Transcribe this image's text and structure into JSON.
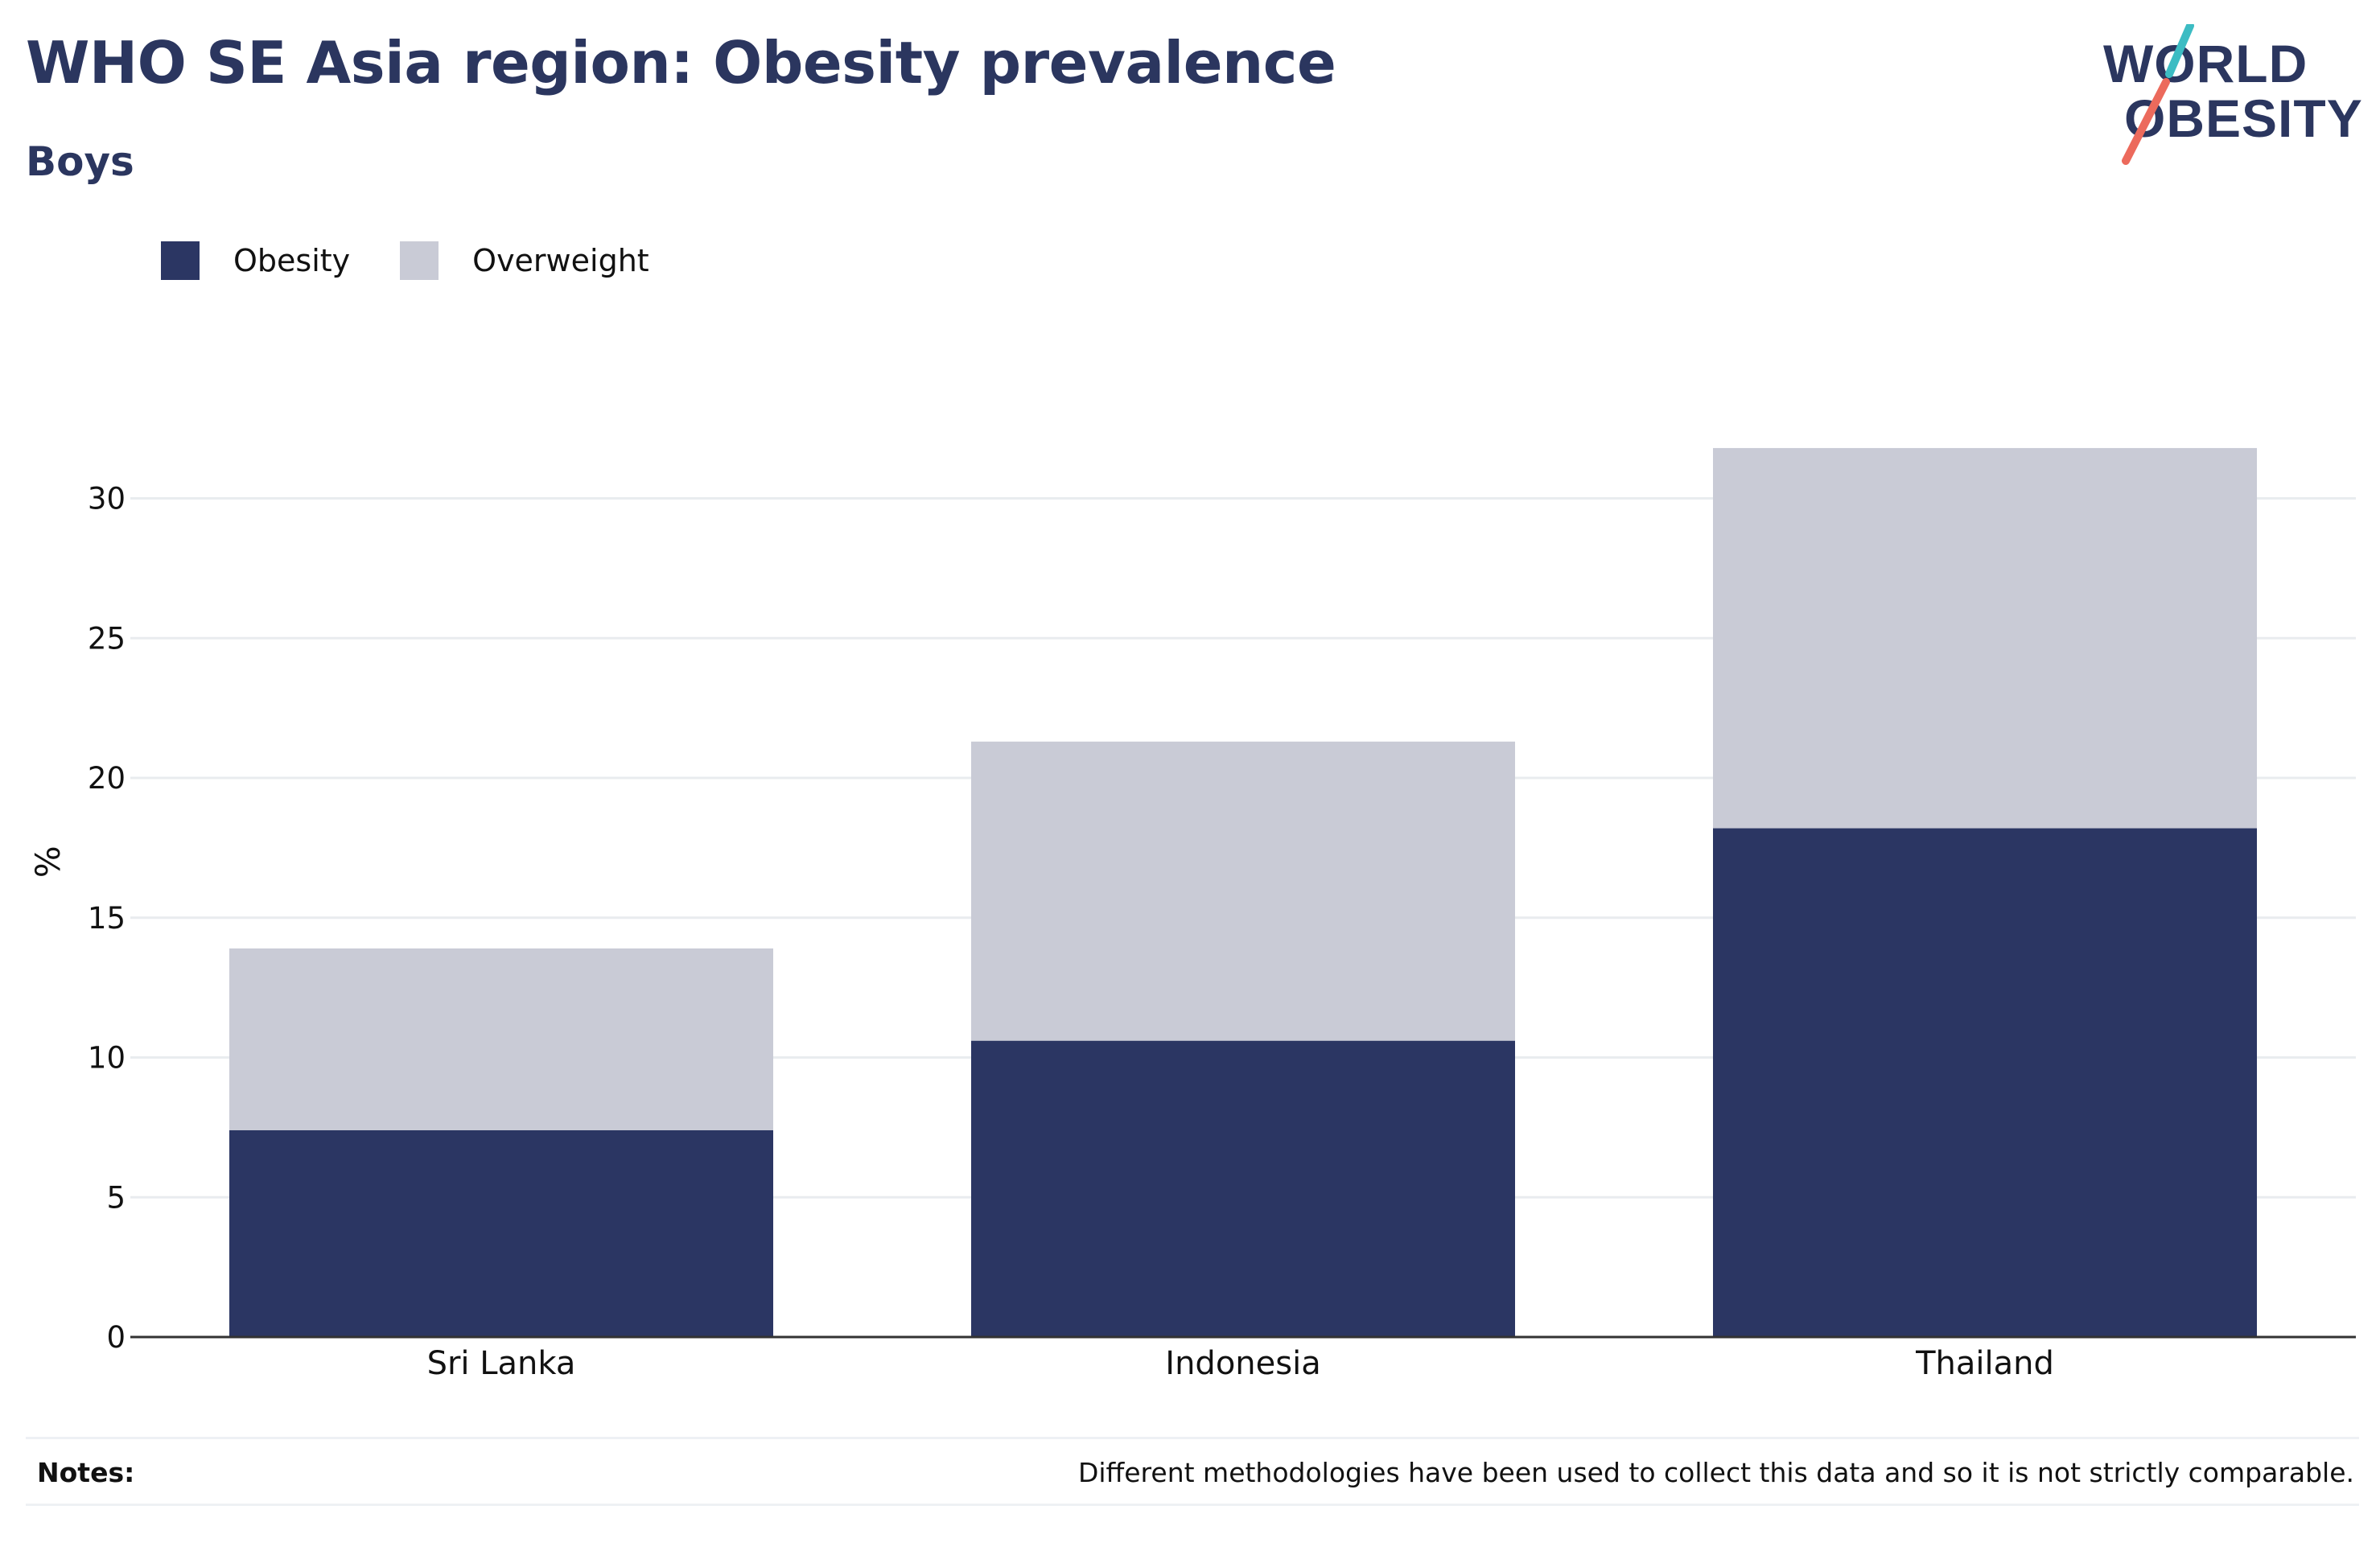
{
  "header": {
    "title": "WHO SE Asia region: Obesity prevalence",
    "subtitle": "Boys"
  },
  "logo": {
    "line1": "WORLD",
    "line2": "OBESITY",
    "colors": {
      "text": "#2b365f",
      "slash_top": "#3cbcc3",
      "slash_bottom": "#ec6a5c"
    }
  },
  "legend": {
    "items": [
      {
        "label": "Obesity",
        "color": "#2b3663"
      },
      {
        "label": "Overweight",
        "color": "#c9cbd6"
      }
    ]
  },
  "chart_data": {
    "type": "bar",
    "stacked": true,
    "categories": [
      "Sri Lanka",
      "Indonesia",
      "Thailand"
    ],
    "series": [
      {
        "name": "Obesity",
        "color": "#2b3663",
        "values": [
          7.4,
          10.6,
          18.2
        ]
      },
      {
        "name": "Overweight",
        "color": "#c9cbd6",
        "values": [
          6.5,
          10.7,
          13.6
        ]
      }
    ],
    "totals": [
      13.9,
      21.3,
      31.8
    ],
    "ylabel": "%",
    "xlabel": "",
    "ylim": [
      0,
      32
    ],
    "yticks": [
      0,
      5,
      10,
      15,
      20,
      25,
      30
    ],
    "grid": true,
    "legend_position": "top-left"
  },
  "notes": {
    "label": "Notes:",
    "text": "Different methodologies have been used to collect this data and so it is not strictly comparable."
  }
}
